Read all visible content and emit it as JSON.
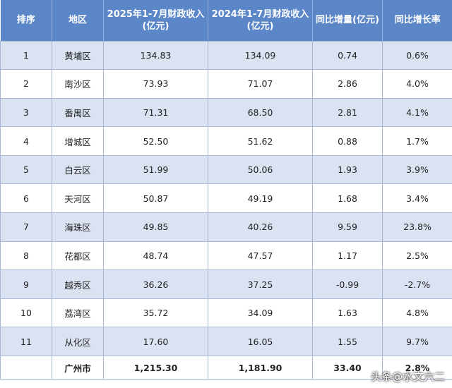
{
  "headers": [
    "排序",
    "地区",
    "2025年1-7月财政收入(亿元)",
    "2024年1-7月财政收入(亿元)",
    "同比增量(亿元)",
    "同比增长率"
  ],
  "rows": [
    {
      "rank": "1",
      "region": "黄埔区",
      "rev2025": "134.83",
      "rev2024": "134.09",
      "increase": "0.74",
      "rate": "0.6%"
    },
    {
      "rank": "2",
      "region": "南沙区",
      "rev2025": "73.93",
      "rev2024": "71.07",
      "increase": "2.86",
      "rate": "4.0%"
    },
    {
      "rank": "3",
      "region": "番禺区",
      "rev2025": "71.31",
      "rev2024": "68.50",
      "increase": "2.81",
      "rate": "4.1%"
    },
    {
      "rank": "4",
      "region": "增城区",
      "rev2025": "52.50",
      "rev2024": "51.62",
      "increase": "0.88",
      "rate": "1.7%"
    },
    {
      "rank": "5",
      "region": "白云区",
      "rev2025": "51.99",
      "rev2024": "50.06",
      "increase": "1.93",
      "rate": "3.9%"
    },
    {
      "rank": "6",
      "region": "天河区",
      "rev2025": "50.87",
      "rev2024": "49.19",
      "increase": "1.68",
      "rate": "3.4%"
    },
    {
      "rank": "7",
      "region": "海珠区",
      "rev2025": "49.85",
      "rev2024": "40.26",
      "increase": "9.59",
      "rate": "23.8%"
    },
    {
      "rank": "8",
      "region": "花都区",
      "rev2025": "48.74",
      "rev2024": "47.57",
      "increase": "1.17",
      "rate": "2.5%"
    },
    {
      "rank": "9",
      "region": "越秀区",
      "rev2025": "36.26",
      "rev2024": "37.25",
      "increase": "-0.99",
      "rate": "-2.7%"
    },
    {
      "rank": "10",
      "region": "荔湾区",
      "rev2025": "35.72",
      "rev2024": "34.09",
      "increase": "1.63",
      "rate": "4.8%"
    },
    {
      "rank": "11",
      "region": "从化区",
      "rev2025": "17.60",
      "rev2024": "16.05",
      "increase": "1.55",
      "rate": "9.7%"
    }
  ],
  "total": {
    "rank": "",
    "region": "广州市",
    "rev2025": "1,215.30",
    "rev2024": "1,181.90",
    "increase": "33.40",
    "rate": "2.8%"
  },
  "watermark": "头条@水文六二",
  "colors": {
    "header_bg": "#5b86c8",
    "shade_row": "#dbe3f3",
    "plain_row": "#ffffff"
  }
}
